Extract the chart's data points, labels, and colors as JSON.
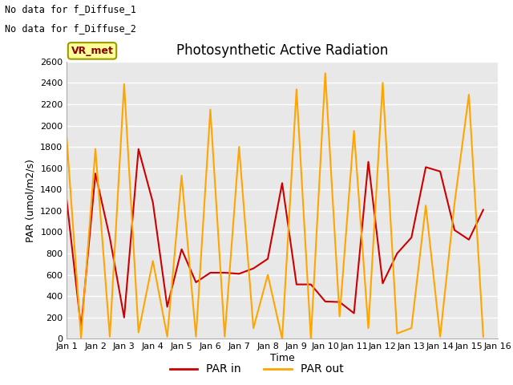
{
  "title": "Photosynthetic Active Radiation",
  "xlabel": "Time",
  "ylabel": "PAR (umol/m2/s)",
  "annotations": [
    "No data for f_Diffuse_1",
    "No data for f_Diffuse_2"
  ],
  "box_label": "VR_met",
  "legend_labels": [
    "PAR in",
    "PAR out"
  ],
  "par_in_color": "#cc0000",
  "par_out_color": "#ffa500",
  "background_color": "#e8e8e8",
  "ylim": [
    0,
    2600
  ],
  "yticks": [
    0,
    200,
    400,
    600,
    800,
    1000,
    1200,
    1400,
    1600,
    1800,
    2000,
    2200,
    2400,
    2600
  ],
  "x_days": [
    1,
    2,
    3,
    4,
    5,
    6,
    7,
    8,
    9,
    10,
    11,
    12,
    13,
    14,
    15,
    16
  ],
  "x_labels": [
    "Jan 1",
    "Jan 2",
    "Jan 3",
    "Jan 4",
    "Jan 5",
    "Jan 6",
    "Jan 7",
    "Jan 8",
    "Jan 9",
    "Jan 10",
    "Jan 11",
    "Jan 12",
    "Jan 13",
    "Jan 14",
    "Jan 15",
    "Jan 16"
  ],
  "par_in_x": [
    1,
    1.5,
    2,
    2.5,
    3,
    3.5,
    4,
    4.5,
    5,
    5.5,
    6,
    6.5,
    7,
    7.5,
    8,
    8.5,
    9,
    9.5,
    10,
    10.5,
    11,
    11.5,
    12,
    12.5,
    13,
    13.5,
    14,
    14.5,
    15,
    15.5
  ],
  "par_in_y": [
    1300,
    100,
    1550,
    950,
    200,
    1780,
    1280,
    300,
    840,
    530,
    620,
    620,
    610,
    660,
    750,
    1460,
    510,
    510,
    350,
    345,
    240,
    1660,
    520,
    800,
    950,
    1610,
    1570,
    1020,
    930,
    1210
  ],
  "par_out_x": [
    1,
    1.5,
    2,
    2.5,
    3,
    3.5,
    4,
    4.5,
    5,
    5.5,
    6,
    6.5,
    7,
    7.5,
    8,
    8.5,
    9,
    9.5,
    10,
    10.5,
    11,
    11.5,
    12,
    12.5,
    13,
    13.5,
    14,
    14.5,
    15,
    15.5
  ],
  "par_out_y": [
    1880,
    10,
    1780,
    20,
    2390,
    60,
    730,
    20,
    1530,
    20,
    2150,
    20,
    1800,
    100,
    600,
    0,
    2340,
    0,
    2490,
    210,
    1950,
    100,
    2400,
    50,
    100,
    1250,
    20,
    1270,
    2290,
    20
  ]
}
